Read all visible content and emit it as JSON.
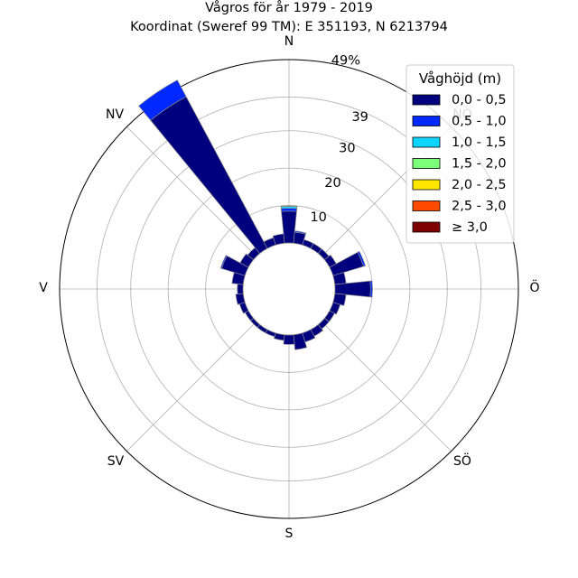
{
  "chart_data": {
    "type": "windrose",
    "title": "Vågros för år 1979 - 2019",
    "subtitle": "Koordinat (Sweref 99 TM): E 351193, N 6213794",
    "directions": [
      {
        "key": "N",
        "label": "N",
        "angle_deg": 0
      },
      {
        "key": "NO",
        "label": "NO",
        "angle_deg": 45
      },
      {
        "key": "O",
        "label": "Ö",
        "angle_deg": 90
      },
      {
        "key": "SO",
        "label": "SÖ",
        "angle_deg": 135
      },
      {
        "key": "S",
        "label": "S",
        "angle_deg": 180
      },
      {
        "key": "SV",
        "label": "SV",
        "angle_deg": 225
      },
      {
        "key": "V",
        "label": "V",
        "angle_deg": 270
      },
      {
        "key": "NV",
        "label": "NV",
        "angle_deg": 315
      }
    ],
    "rmax": 49,
    "ring_values": [
      10,
      20,
      30,
      39
    ],
    "ring_labels": [
      "10",
      "20",
      "30",
      "39"
    ],
    "max_label": "49%",
    "sector_width_deg": 11.25,
    "legend_title": "Våghöjd (m)",
    "legend_position": "upper-right",
    "classes": [
      {
        "label": "0,0 - 0,5",
        "color": "#00007f"
      },
      {
        "label": "0,5 - 1,0",
        "color": "#0028ff"
      },
      {
        "label": "1,0 - 1,5",
        "color": "#0dd5ff"
      },
      {
        "label": "1,5 - 2,0",
        "color": "#7cff79"
      },
      {
        "label": "2,0 - 2,5",
        "color": "#ffe600"
      },
      {
        "label": "2,5 - 3,0",
        "color": "#ff4a00"
      },
      {
        "label": "≥ 3,0",
        "color": "#7f0000"
      }
    ],
    "sectors": [
      {
        "dir_deg": 0,
        "values": [
          8.5,
          0.8,
          0.5,
          0.2,
          0,
          0,
          0
        ]
      },
      {
        "dir_deg": 11.25,
        "values": [
          3.0,
          0.3,
          0,
          0,
          0,
          0,
          0
        ]
      },
      {
        "dir_deg": 22.5,
        "values": [
          1.5,
          0,
          0,
          0,
          0,
          0,
          0
        ]
      },
      {
        "dir_deg": 33.75,
        "values": [
          1.5,
          0,
          0,
          0,
          0,
          0,
          0
        ]
      },
      {
        "dir_deg": 45,
        "values": [
          1.5,
          0,
          0,
          0,
          0,
          0,
          0
        ]
      },
      {
        "dir_deg": 56.25,
        "values": [
          2.0,
          0,
          0,
          0,
          0,
          0,
          0
        ]
      },
      {
        "dir_deg": 67.5,
        "values": [
          8.5,
          0.5,
          0,
          0,
          0,
          0,
          0
        ]
      },
      {
        "dir_deg": 78.75,
        "values": [
          3.0,
          0,
          0,
          0,
          0,
          0,
          0
        ]
      },
      {
        "dir_deg": 90,
        "values": [
          9.5,
          0.5,
          0,
          0,
          0,
          0,
          0
        ]
      },
      {
        "dir_deg": 101.25,
        "values": [
          3.0,
          0,
          0,
          0,
          0,
          0,
          0
        ]
      },
      {
        "dir_deg": 112.5,
        "values": [
          2.0,
          0,
          0,
          0,
          0,
          0,
          0
        ]
      },
      {
        "dir_deg": 123.75,
        "values": [
          1.5,
          0,
          0,
          0,
          0,
          0,
          0
        ]
      },
      {
        "dir_deg": 135,
        "values": [
          1.5,
          0,
          0,
          0,
          0,
          0,
          0
        ]
      },
      {
        "dir_deg": 146.25,
        "values": [
          2.0,
          0,
          0,
          0,
          0,
          0,
          0
        ]
      },
      {
        "dir_deg": 157.5,
        "values": [
          2.5,
          0,
          0,
          0,
          0,
          0,
          0
        ]
      },
      {
        "dir_deg": 168.75,
        "values": [
          4.0,
          0,
          0,
          0,
          0,
          0,
          0
        ]
      },
      {
        "dir_deg": 180,
        "values": [
          2.5,
          0,
          0,
          0,
          0,
          0,
          0
        ]
      },
      {
        "dir_deg": 191.25,
        "values": [
          1.5,
          0,
          0,
          0,
          0,
          0,
          0
        ]
      },
      {
        "dir_deg": 202.5,
        "values": [
          1.0,
          0,
          0,
          0,
          0,
          0,
          0
        ]
      },
      {
        "dir_deg": 213.75,
        "values": [
          1.0,
          0,
          0,
          0,
          0,
          0,
          0
        ]
      },
      {
        "dir_deg": 225,
        "values": [
          1.0,
          0,
          0,
          0,
          0,
          0,
          0
        ]
      },
      {
        "dir_deg": 236.25,
        "values": [
          1.0,
          0,
          0,
          0,
          0,
          0,
          0
        ]
      },
      {
        "dir_deg": 247.5,
        "values": [
          1.5,
          0,
          0,
          0,
          0,
          0,
          0
        ]
      },
      {
        "dir_deg": 258.75,
        "values": [
          2.0,
          0,
          0,
          0,
          0,
          0,
          0
        ]
      },
      {
        "dir_deg": 270,
        "values": [
          1.5,
          0,
          0,
          0,
          0,
          0,
          0
        ]
      },
      {
        "dir_deg": 281.25,
        "values": [
          3.0,
          0,
          0,
          0,
          0,
          0,
          0
        ]
      },
      {
        "dir_deg": 292.5,
        "values": [
          6.5,
          0.3,
          0,
          0,
          0,
          0,
          0
        ]
      },
      {
        "dir_deg": 303.75,
        "values": [
          2.5,
          0,
          0,
          0,
          0,
          0,
          0
        ]
      },
      {
        "dir_deg": 315,
        "values": [
          2.0,
          0,
          0,
          0,
          0,
          0,
          0
        ]
      },
      {
        "dir_deg": 326.25,
        "values": [
          46.0,
          5.0,
          0,
          0,
          0,
          0,
          0
        ]
      },
      {
        "dir_deg": 337.5,
        "values": [
          2.0,
          0,
          0,
          0,
          0,
          0,
          0
        ]
      },
      {
        "dir_deg": 348.75,
        "values": [
          2.5,
          0,
          0,
          0,
          0,
          0,
          0
        ]
      }
    ]
  }
}
